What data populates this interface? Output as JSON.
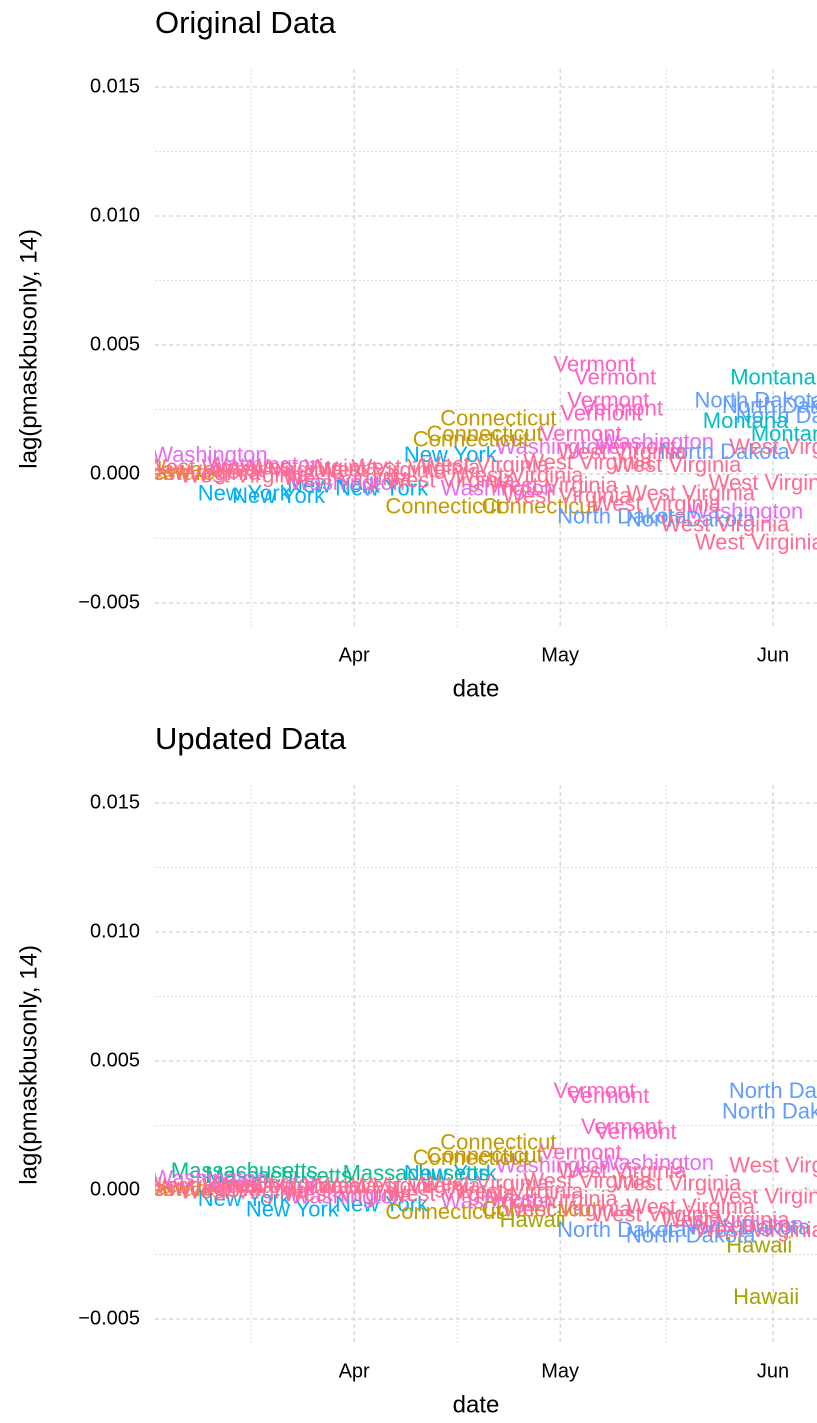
{
  "chart_data": [
    {
      "type": "text-scatter",
      "title": "Original Data",
      "xlabel": "date",
      "ylabel": "lag(pmaskbusonly, 14)",
      "xlim": [
        2,
        98.4
      ],
      "xticks": [
        {
          "value": 31,
          "label": "Apr"
        },
        {
          "value": 61,
          "label": "May"
        },
        {
          "value": 92,
          "label": "Jun"
        }
      ],
      "ylim": [
        -0.006,
        0.0157
      ],
      "yticks": [
        {
          "value": -0.005,
          "label": "−0.005"
        },
        {
          "value": 0,
          "label": "0.000"
        },
        0.005,
        {
          "value": 0.01,
          "label": "0.010"
        },
        0.015
      ],
      "grid": true,
      "series": [
        {
          "name": "Delaware",
          "color": "#D39200",
          "x": [
            4,
            5
          ],
          "values": [
            0,
            0.0001
          ]
        },
        {
          "name": "New York",
          "color": "#00B0F6",
          "x": [
            15,
            20,
            35,
            45,
            28
          ],
          "values": [
            -0.0008,
            -0.0009,
            -0.0006,
            0.0007,
            -0.0005
          ]
        },
        {
          "name": "Washington",
          "color": "#E76BF3",
          "x": [
            10,
            30,
            60,
            88,
            75,
            18,
            52
          ],
          "values": [
            0.0007,
            -0.0004,
            0.001,
            -0.0015,
            0.0012,
            0.0003,
            -0.0006
          ]
        },
        {
          "name": "Connecticut",
          "color": "#C49A00",
          "x": [
            52,
            50,
            48,
            44,
            58
          ],
          "values": [
            0.0021,
            0.0015,
            0.0013,
            -0.0013,
            -0.0013
          ]
        },
        {
          "name": "North Dakota",
          "color": "#619CFF",
          "x": [
            90,
            94,
            80,
            85,
            70,
            96
          ],
          "values": [
            0.0028,
            0.0026,
            -0.0018,
            0.0008,
            -0.0017,
            0.0022
          ]
        },
        {
          "name": "Montana",
          "color": "#00BFC4",
          "x": [
            92,
            95,
            88
          ],
          "values": [
            0.0037,
            0.0015,
            0.002
          ]
        },
        {
          "name": "Vermont",
          "color": "#FF61C3",
          "x": [
            66,
            69,
            68,
            70,
            67,
            72,
            64
          ],
          "values": [
            0.0042,
            0.0037,
            0.0028,
            0.0025,
            0.0023,
            0.001,
            0.0015
          ]
        },
        {
          "name": "West Virginia",
          "color": "#FF6C91",
          "x": [
            90,
            85,
            75,
            60,
            40,
            20,
            10,
            30,
            50,
            70,
            95,
            80,
            65,
            45,
            25,
            8,
            55,
            35,
            15,
            92,
            78,
            62
          ],
          "values": [
            -0.0027,
            -0.002,
            -0.0012,
            -0.0005,
            0.0002,
            0.0001,
            0.0002,
            -0.0002,
            0.0003,
            0.0008,
            0.001,
            -0.0008,
            0.0004,
            -0.0003,
            0.0002,
            0,
            -0.0001,
            0.0001,
            -0.0001,
            -0.0004,
            0.0003,
            -0.0009
          ]
        }
      ]
    },
    {
      "type": "text-scatter",
      "title": "Updated Data",
      "xlabel": "date",
      "ylabel": "lag(pmaskbusonly, 14)",
      "xlim": [
        2,
        98.4
      ],
      "xticks": [
        {
          "value": 31,
          "label": "Apr"
        },
        {
          "value": 61,
          "label": "May"
        },
        {
          "value": 92,
          "label": "Jun"
        }
      ],
      "ylim": [
        -0.006,
        0.0157
      ],
      "yticks": [
        {
          "value": -0.005,
          "label": "−0.005"
        },
        {
          "value": 0,
          "label": "0.000"
        },
        0.005,
        {
          "value": 0.01,
          "label": "0.010"
        },
        0.015
      ],
      "grid": true,
      "series": [
        {
          "name": "Delaware",
          "color": "#D39200",
          "x": [
            4,
            5
          ],
          "values": [
            0,
            0.0001
          ]
        },
        {
          "name": "Massachusetts",
          "color": "#00C08B",
          "x": [
            15,
            20,
            40
          ],
          "values": [
            0.0007,
            0.0005,
            0.0006
          ]
        },
        {
          "name": "New York",
          "color": "#00B0F6",
          "x": [
            15,
            22,
            35,
            45
          ],
          "values": [
            -0.0004,
            -0.0008,
            -0.0006,
            0.0006
          ]
        },
        {
          "name": "Washington",
          "color": "#E76BF3",
          "x": [
            10,
            30,
            60,
            88,
            75,
            18,
            52
          ],
          "values": [
            0.0004,
            -0.0003,
            0.0009,
            -0.0014,
            0.001,
            0.0002,
            -0.0005
          ]
        },
        {
          "name": "Connecticut",
          "color": "#C49A00",
          "x": [
            52,
            50,
            48,
            44,
            58
          ],
          "values": [
            0.0018,
            0.0013,
            0.0012,
            -0.0009,
            -0.0008
          ]
        },
        {
          "name": "Hawaii",
          "color": "#A3A500",
          "x": [
            57,
            90,
            91
          ],
          "values": [
            -0.0012,
            -0.0022,
            -0.0042
          ]
        },
        {
          "name": "North Dakota",
          "color": "#619CFF",
          "x": [
            95,
            94,
            88,
            80,
            70
          ],
          "values": [
            0.0038,
            0.003,
            -0.0015,
            -0.0018,
            -0.0016
          ]
        },
        {
          "name": "Vermont",
          "color": "#FF61C3",
          "x": [
            66,
            68,
            70,
            72,
            64
          ],
          "values": [
            0.0038,
            0.0036,
            0.0024,
            0.0022,
            0.0014
          ]
        },
        {
          "name": "West Virginia",
          "color": "#FF6C91",
          "x": [
            90,
            85,
            75,
            60,
            40,
            20,
            10,
            30,
            50,
            70,
            95,
            80,
            65,
            45,
            25,
            8,
            55,
            35,
            15,
            92,
            78,
            62
          ],
          "values": [
            -0.0016,
            -0.0012,
            -0.001,
            -0.0004,
            0.0001,
            0.0001,
            0.0001,
            -0.0002,
            0.0002,
            0.0007,
            0.0009,
            -0.0007,
            0.0003,
            -0.0002,
            0.0001,
            0,
            -0.0001,
            0.0001,
            -0.0001,
            -0.0003,
            0.0002,
            -0.0008
          ]
        }
      ]
    }
  ]
}
